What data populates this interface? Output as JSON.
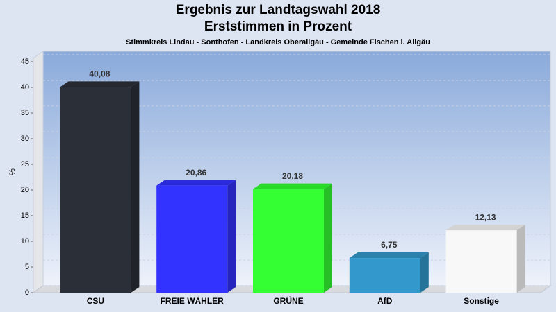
{
  "chart_data": {
    "type": "bar",
    "title": "Ergebnis zur Landtagswahl 2018",
    "subtitle": "Erststimmen in Prozent",
    "caption": "Stimmkreis Lindau - Sonthofen - Landkreis Oberallgäu - Gemeinde Fischen i. Allgäu",
    "y_label": "%",
    "categories": [
      "CSU",
      "FREIE WÄHLER",
      "GRÜNE",
      "AfD",
      "Sonstige"
    ],
    "values": [
      40.08,
      20.86,
      20.18,
      6.75,
      12.13
    ],
    "value_labels": [
      "40,08",
      "20,86",
      "20,18",
      "6,75",
      "12,13"
    ],
    "colors": [
      "#2b2f37",
      "#3333ff",
      "#33ff33",
      "#3399cc",
      "#f8f8f8"
    ],
    "ylim": [
      0,
      45
    ],
    "yticks": [
      0,
      5,
      10,
      15,
      20,
      25,
      30,
      35,
      40,
      45
    ],
    "grid": true
  }
}
